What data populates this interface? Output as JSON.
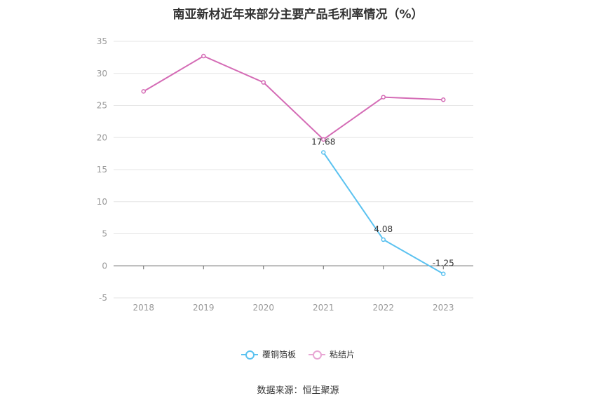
{
  "chart_data": {
    "type": "line",
    "title": "南亚新材近年来部分主要产品毛利率情况（%）",
    "categories": [
      "2018",
      "2019",
      "2020",
      "2021",
      "2022",
      "2023"
    ],
    "ylim": [
      -5,
      35
    ],
    "yticks": [
      -5,
      0,
      5,
      10,
      15,
      20,
      25,
      30,
      35
    ],
    "grid": true,
    "legend_position": "bottom",
    "series": [
      {
        "name": "覆铜箔板",
        "color": "#5bc2f0",
        "values": [
          null,
          null,
          null,
          17.68,
          4.08,
          -1.25
        ],
        "labels": [
          "",
          "",
          "",
          "17.68",
          "4.08",
          "-1.25"
        ]
      },
      {
        "name": "粘结片",
        "color": "#d46bb5",
        "values": [
          27.2,
          32.7,
          28.6,
          19.7,
          26.3,
          25.9
        ],
        "labels": [
          "",
          "",
          "",
          "",
          "",
          ""
        ]
      }
    ]
  },
  "source": "数据来源：恒生聚源"
}
